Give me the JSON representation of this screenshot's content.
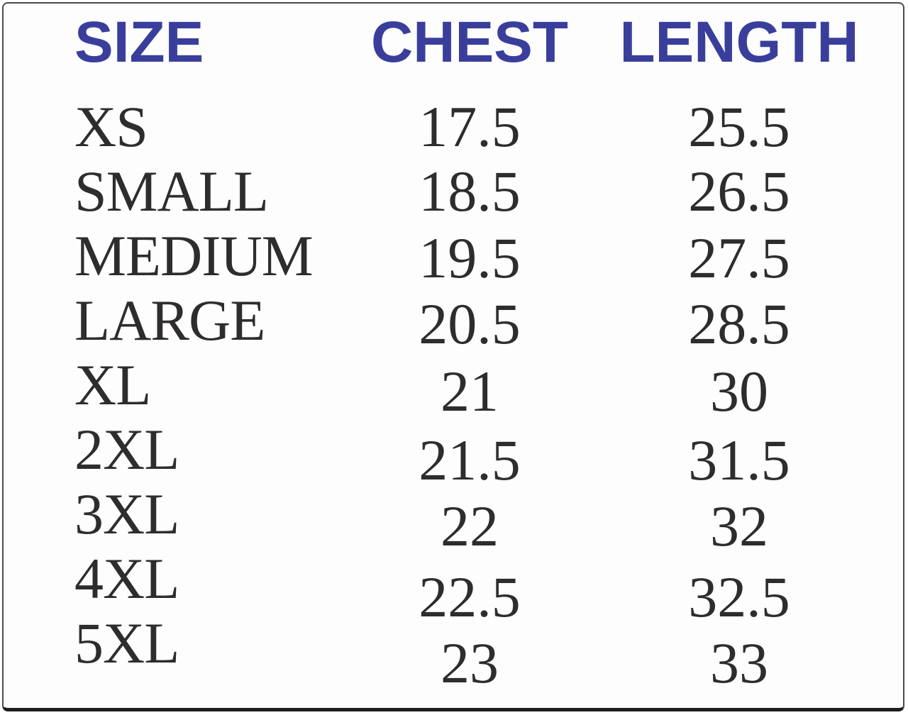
{
  "chart_data": {
    "type": "table",
    "title": "",
    "columns": [
      "SIZE",
      "CHEST",
      "LENGTH"
    ],
    "rows": [
      {
        "size": "XS",
        "chest": "17.5",
        "length": "25.5"
      },
      {
        "size": "SMALL",
        "chest": "18.5",
        "length": "26.5"
      },
      {
        "size": "MEDIUM",
        "chest": "19.5",
        "length": "27.5"
      },
      {
        "size": "LARGE",
        "chest": "20.5",
        "length": "28.5"
      },
      {
        "size": "XL",
        "chest": "21",
        "length": "30"
      },
      {
        "size": "2XL",
        "chest": "21.5",
        "length": "31.5"
      },
      {
        "size": "3XL",
        "chest": "22",
        "length": "32"
      },
      {
        "size": "4XL",
        "chest": "22.5",
        "length": "32.5"
      },
      {
        "size": "5XL",
        "chest": "23",
        "length": "33"
      }
    ]
  },
  "colors": {
    "header_text": "#3a3e9b",
    "body_text": "#2e2c2d",
    "frame_border": "#4b4b4b",
    "bottom_rule": "#1d1d1d",
    "background": "#fdfdfd"
  }
}
